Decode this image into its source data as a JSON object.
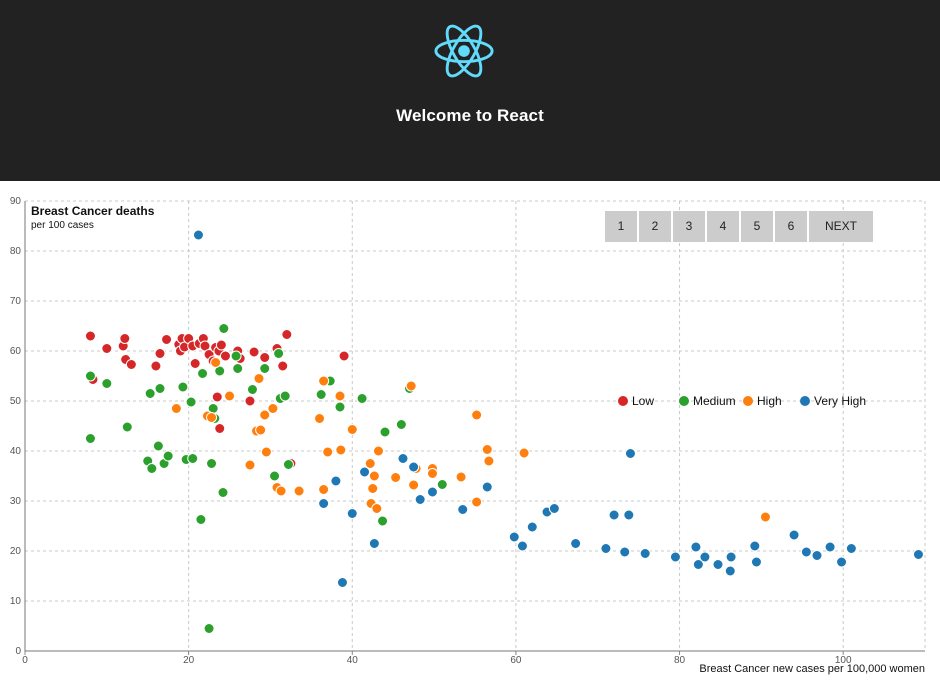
{
  "header": {
    "title": "Welcome to React",
    "logo_icon": "react-atom-icon",
    "logo_color": "#61dafb",
    "background": "#222222"
  },
  "pagination": {
    "pages": [
      "1",
      "2",
      "3",
      "4",
      "5",
      "6"
    ],
    "next_label": "NEXT"
  },
  "chart_data": {
    "type": "scatter",
    "title": "Breast Cancer deaths",
    "subtitle": "per 100 cases",
    "xlabel": "Breast Cancer new cases per 100,000 women",
    "ylabel": "",
    "xlim": [
      0,
      110
    ],
    "ylim": [
      0,
      90
    ],
    "x_ticks": [
      0,
      20,
      40,
      60,
      80,
      100
    ],
    "y_ticks": [
      0,
      10,
      20,
      30,
      40,
      50,
      60,
      70,
      80,
      90
    ],
    "grid": true,
    "legend_position": "right",
    "series": [
      {
        "name": "Low",
        "color": "#d62728",
        "points": [
          [
            8,
            63
          ],
          [
            8.3,
            54.3
          ],
          [
            10,
            60.5
          ],
          [
            12,
            61
          ],
          [
            12.2,
            62.5
          ],
          [
            12.3,
            58.3
          ],
          [
            13,
            57.3
          ],
          [
            16,
            57
          ],
          [
            16.5,
            59.5
          ],
          [
            17.3,
            62.3
          ],
          [
            18.8,
            61.3
          ],
          [
            19,
            60
          ],
          [
            19.2,
            62.5
          ],
          [
            19.5,
            60.8
          ],
          [
            20,
            62.5
          ],
          [
            20.5,
            61
          ],
          [
            20.8,
            57.5
          ],
          [
            21.3,
            61.5
          ],
          [
            21.8,
            62.5
          ],
          [
            22,
            61
          ],
          [
            22.5,
            59.3
          ],
          [
            23,
            58
          ],
          [
            23.3,
            60.7
          ],
          [
            23.5,
            50.8
          ],
          [
            23.7,
            60
          ],
          [
            24,
            61.2
          ],
          [
            23.8,
            44.5
          ],
          [
            24.5,
            59
          ],
          [
            26,
            60
          ],
          [
            26.3,
            58.5
          ],
          [
            27.5,
            50
          ],
          [
            28,
            59.8
          ],
          [
            29.3,
            58.7
          ],
          [
            30.8,
            60.5
          ],
          [
            31.5,
            57
          ],
          [
            32,
            63.3
          ],
          [
            32.5,
            37.5
          ],
          [
            39,
            59
          ]
        ]
      },
      {
        "name": "Medium",
        "color": "#2ca02c",
        "points": [
          [
            8,
            55
          ],
          [
            8,
            42.5
          ],
          [
            10,
            53.5
          ],
          [
            12.5,
            44.8
          ],
          [
            15,
            38
          ],
          [
            15.3,
            51.5
          ],
          [
            15.5,
            36.5
          ],
          [
            16.3,
            41
          ],
          [
            16.5,
            52.5
          ],
          [
            17,
            37.5
          ],
          [
            17.5,
            39
          ],
          [
            19.3,
            52.8
          ],
          [
            19.7,
            38.3
          ],
          [
            20.3,
            49.8
          ],
          [
            20.5,
            38.5
          ],
          [
            21.5,
            26.3
          ],
          [
            21.7,
            55.5
          ],
          [
            22.5,
            4.5
          ],
          [
            22.8,
            37.5
          ],
          [
            23,
            48.5
          ],
          [
            23.2,
            46.5
          ],
          [
            23.8,
            56
          ],
          [
            24.3,
            64.5
          ],
          [
            24.2,
            31.7
          ],
          [
            25.8,
            59
          ],
          [
            26,
            56.5
          ],
          [
            27.8,
            52.3
          ],
          [
            29.3,
            56.5
          ],
          [
            30.5,
            35
          ],
          [
            31,
            59.5
          ],
          [
            31.2,
            50.5
          ],
          [
            31.8,
            51
          ],
          [
            32.2,
            37.3
          ],
          [
            36.2,
            51.3
          ],
          [
            37.3,
            54
          ],
          [
            38.5,
            48.8
          ],
          [
            41.2,
            50.5
          ],
          [
            43.7,
            26
          ],
          [
            44,
            43.8
          ],
          [
            46,
            45.3
          ],
          [
            47,
            52.5
          ],
          [
            51,
            33.3
          ]
        ]
      },
      {
        "name": "High",
        "color": "#ff7f0e",
        "points": [
          [
            18.5,
            48.5
          ],
          [
            22.3,
            47
          ],
          [
            22.8,
            46.7
          ],
          [
            23.3,
            57.7
          ],
          [
            25,
            51
          ],
          [
            28.3,
            44
          ],
          [
            28.6,
            54.5
          ],
          [
            28.8,
            44.2
          ],
          [
            29.3,
            47.2
          ],
          [
            29.5,
            39.8
          ],
          [
            27.5,
            37.2
          ],
          [
            30.3,
            48.5
          ],
          [
            30.8,
            32.7
          ],
          [
            31.3,
            32
          ],
          [
            33.5,
            32
          ],
          [
            36,
            46.5
          ],
          [
            36.5,
            32.3
          ],
          [
            36.5,
            54
          ],
          [
            37,
            39.8
          ],
          [
            38.5,
            51
          ],
          [
            38.6,
            40.2
          ],
          [
            40,
            44.3
          ],
          [
            42.2,
            37.5
          ],
          [
            42.3,
            29.5
          ],
          [
            42.5,
            32.5
          ],
          [
            42.7,
            35
          ],
          [
            43,
            28.5
          ],
          [
            43.2,
            40
          ],
          [
            45.3,
            34.7
          ],
          [
            47.2,
            53
          ],
          [
            47.5,
            33.2
          ],
          [
            47.8,
            36.5
          ],
          [
            49.8,
            36.5
          ],
          [
            49.8,
            35.5
          ],
          [
            53.3,
            34.8
          ],
          [
            55.2,
            47.2
          ],
          [
            55.2,
            29.8
          ],
          [
            56.5,
            40.3
          ],
          [
            56.7,
            38
          ],
          [
            61,
            39.6
          ],
          [
            90.5,
            26.8
          ]
        ]
      },
      {
        "name": "Very High",
        "color": "#1f77b4",
        "points": [
          [
            21.2,
            83.2
          ],
          [
            36.5,
            29.5
          ],
          [
            38,
            34
          ],
          [
            38.8,
            13.7
          ],
          [
            40,
            27.5
          ],
          [
            41.5,
            35.8
          ],
          [
            42.7,
            21.5
          ],
          [
            46.2,
            38.5
          ],
          [
            47.5,
            36.8
          ],
          [
            48.3,
            30.3
          ],
          [
            49.8,
            31.8
          ],
          [
            53.5,
            28.3
          ],
          [
            56.5,
            32.8
          ],
          [
            59.8,
            22.8
          ],
          [
            60.8,
            21
          ],
          [
            62,
            24.8
          ],
          [
            63.8,
            27.8
          ],
          [
            64.7,
            28.5
          ],
          [
            67.3,
            21.5
          ],
          [
            71,
            20.5
          ],
          [
            72,
            27.2
          ],
          [
            73.3,
            19.8
          ],
          [
            73.8,
            27.2
          ],
          [
            74,
            39.5
          ],
          [
            75.8,
            19.5
          ],
          [
            79.5,
            18.8
          ],
          [
            82,
            20.8
          ],
          [
            82.3,
            17.3
          ],
          [
            83.1,
            18.8
          ],
          [
            84.7,
            17.3
          ],
          [
            86.2,
            16
          ],
          [
            86.3,
            18.8
          ],
          [
            89.2,
            21
          ],
          [
            89.4,
            17.8
          ],
          [
            94,
            23.2
          ],
          [
            95.5,
            19.8
          ],
          [
            96.8,
            19.1
          ],
          [
            98.4,
            20.8
          ],
          [
            99.8,
            17.8
          ],
          [
            101,
            20.5
          ],
          [
            109.2,
            19.3
          ]
        ]
      }
    ]
  }
}
